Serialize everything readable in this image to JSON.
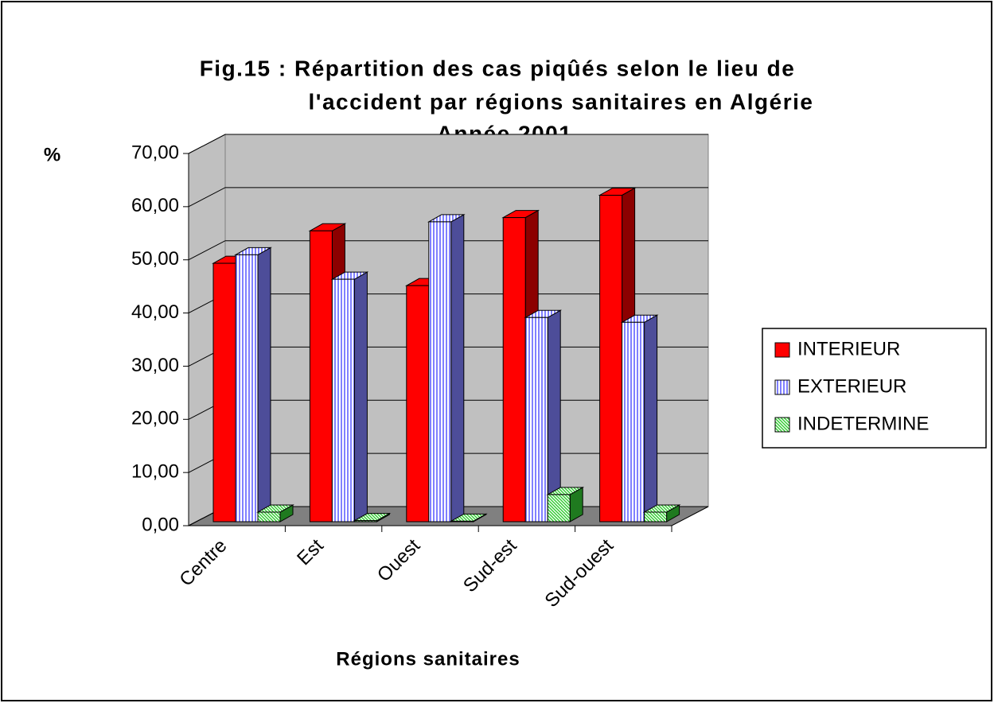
{
  "chart_data": {
    "type": "bar3d",
    "title": [
      "Fig.15 : Répartition des cas piqûés selon le lieu de",
      "l'accident par régions sanitaires en Algérie",
      "Année 2001"
    ],
    "ylabel": "%",
    "xlabel": "Régions sanitaires",
    "categories": [
      "Centre",
      "Est",
      "Ouest",
      "Sud-est",
      "Sud-ouest"
    ],
    "series": [
      {
        "name": "INTERIEUR",
        "color": "#ff0000",
        "values": [
          48.6,
          54.7,
          44.4,
          57.2,
          61.4
        ]
      },
      {
        "name": "EXTERIEUR",
        "color": "#8080ff",
        "values": [
          50.2,
          45.6,
          56.4,
          38.4,
          37.5
        ]
      },
      {
        "name": "INDETERMINE",
        "color": "#33cc33",
        "values": [
          1.8,
          0.2,
          0.1,
          5.1,
          1.8
        ]
      }
    ],
    "ylim": [
      0,
      70
    ],
    "yticks": [
      {
        "value": 0,
        "label": "0,00"
      },
      {
        "value": 10,
        "label": "10,00"
      },
      {
        "value": 20,
        "label": "20,00"
      },
      {
        "value": 30,
        "label": "30,00"
      },
      {
        "value": 40,
        "label": "40,00"
      },
      {
        "value": 50,
        "label": "50,00"
      },
      {
        "value": 60,
        "label": "60,00"
      },
      {
        "value": 70,
        "label": "70,00"
      }
    ],
    "grid": true,
    "legend": "right"
  }
}
